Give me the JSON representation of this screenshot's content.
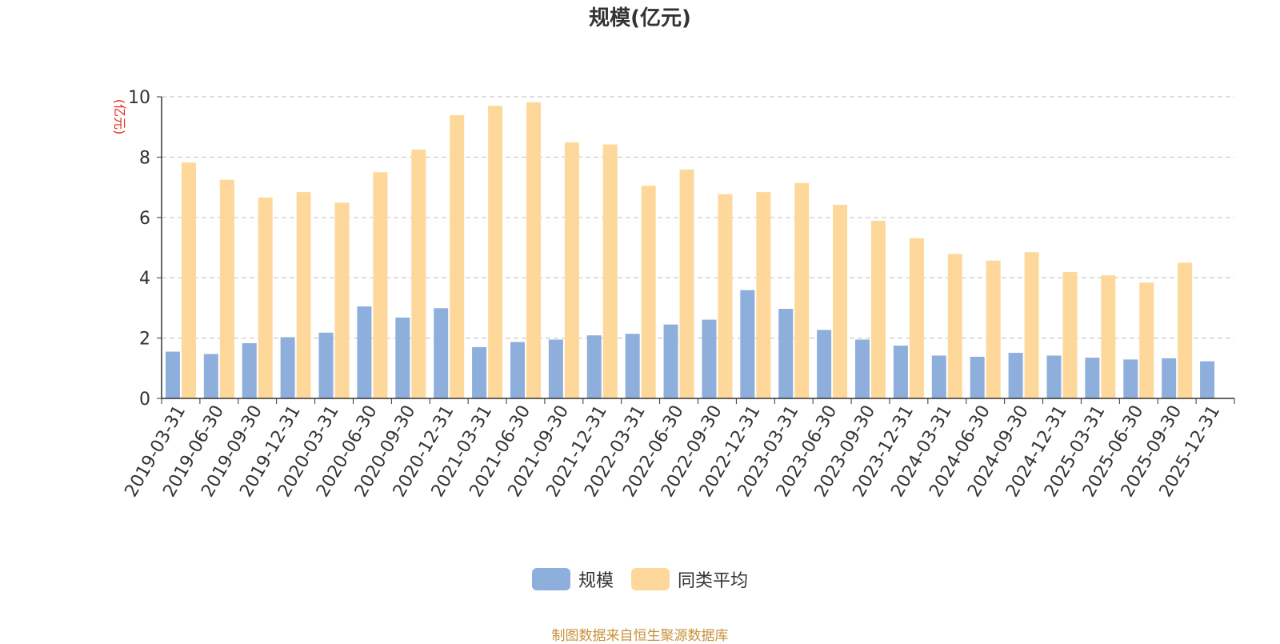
{
  "title": "规模(亿元)",
  "source": "制图数据来自恒生聚源数据库",
  "colors": {
    "series1": "#8eaedc",
    "series2": "#fdd89a",
    "axis_label": "#e8281f"
  },
  "chart_data": {
    "type": "bar",
    "title": "规模(亿元)",
    "ylabel": "(亿元)",
    "ylim": [
      0,
      10
    ],
    "yticks": [
      0,
      2,
      4,
      6,
      8,
      10
    ],
    "grid": true,
    "legend_position": "bottom",
    "categories": [
      "2019-03-31",
      "2019-06-30",
      "2019-09-30",
      "2019-12-31",
      "2020-03-31",
      "2020-06-30",
      "2020-09-30",
      "2020-12-31",
      "2021-03-31",
      "2021-06-30",
      "2021-09-30",
      "2021-12-31",
      "2022-03-31",
      "2022-06-30",
      "2022-09-30",
      "2022-12-31",
      "2023-03-31",
      "2023-06-30",
      "2023-09-30",
      "2023-12-31",
      "2024-03-31",
      "2024-06-30",
      "2024-09-30",
      "2024-12-31",
      "2025-03-31",
      "2025-06-30",
      "2025-09-30",
      "2025-12-31"
    ],
    "series": [
      {
        "name": "规模",
        "values": [
          1.55,
          1.47,
          1.83,
          2.03,
          2.18,
          3.05,
          2.68,
          2.99,
          1.7,
          1.87,
          1.95,
          2.09,
          2.14,
          2.45,
          2.61,
          3.59,
          2.97,
          2.27,
          1.95,
          1.75,
          1.42,
          1.38,
          1.51,
          1.42,
          1.35,
          1.29,
          1.33,
          1.23
        ]
      },
      {
        "name": "同类平均",
        "values": [
          7.82,
          7.25,
          6.66,
          6.84,
          6.49,
          7.5,
          8.25,
          9.39,
          9.7,
          9.82,
          8.49,
          8.42,
          7.05,
          7.59,
          6.77,
          6.84,
          7.14,
          6.42,
          5.89,
          5.31,
          4.79,
          4.57,
          4.85,
          4.19,
          4.08,
          3.84,
          4.5,
          null
        ]
      }
    ]
  }
}
